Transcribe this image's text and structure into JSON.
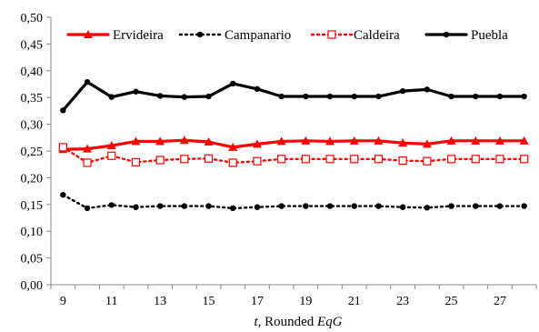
{
  "chart_data": {
    "type": "line",
    "xlabel_parts": [
      {
        "text": "t",
        "italic": true
      },
      {
        "text": ", Rounded ",
        "italic": false
      },
      {
        "text": "EqG",
        "italic": true
      }
    ],
    "ylabel": "",
    "x": [
      9,
      10,
      11,
      12,
      13,
      14,
      15,
      16,
      17,
      18,
      19,
      20,
      21,
      22,
      23,
      24,
      25,
      26,
      27,
      28
    ],
    "xticks": [
      "9",
      "11",
      "13",
      "15",
      "17",
      "19",
      "21",
      "23",
      "25",
      "27"
    ],
    "yticks": [
      "0,00",
      "0,05",
      "0,10",
      "0,15",
      "0,20",
      "0,25",
      "0,30",
      "0,35",
      "0,40",
      "0,45",
      "0,50"
    ],
    "ylim": [
      0,
      0.5
    ],
    "xlim": [
      8.5,
      28.5
    ],
    "grid": false,
    "legend_position": "top",
    "series": [
      {
        "name": "Ervideira",
        "color": "#ff0000",
        "style": "solid-thick",
        "marker": "triangle",
        "values": [
          0.253,
          0.254,
          0.26,
          0.268,
          0.268,
          0.27,
          0.267,
          0.257,
          0.263,
          0.268,
          0.269,
          0.268,
          0.269,
          0.269,
          0.265,
          0.263,
          0.269,
          0.269,
          0.269,
          0.269
        ]
      },
      {
        "name": "Campanario",
        "color": "#000000",
        "style": "dotted",
        "marker": "dot",
        "values": [
          0.168,
          0.143,
          0.149,
          0.145,
          0.147,
          0.147,
          0.147,
          0.143,
          0.145,
          0.147,
          0.147,
          0.147,
          0.147,
          0.147,
          0.145,
          0.144,
          0.147,
          0.147,
          0.147,
          0.147
        ]
      },
      {
        "name": "Caldeira",
        "color": "#ff0000",
        "style": "dotted",
        "marker": "open-square",
        "values": [
          0.257,
          0.228,
          0.241,
          0.229,
          0.233,
          0.235,
          0.236,
          0.228,
          0.231,
          0.235,
          0.235,
          0.235,
          0.235,
          0.235,
          0.232,
          0.231,
          0.235,
          0.235,
          0.235,
          0.235
        ]
      },
      {
        "name": "Puebla",
        "color": "#000000",
        "style": "solid-thick",
        "marker": "dot",
        "values": [
          0.326,
          0.379,
          0.351,
          0.361,
          0.353,
          0.351,
          0.352,
          0.376,
          0.366,
          0.352,
          0.352,
          0.352,
          0.352,
          0.352,
          0.362,
          0.365,
          0.352,
          0.352,
          0.352,
          0.352
        ]
      }
    ]
  }
}
